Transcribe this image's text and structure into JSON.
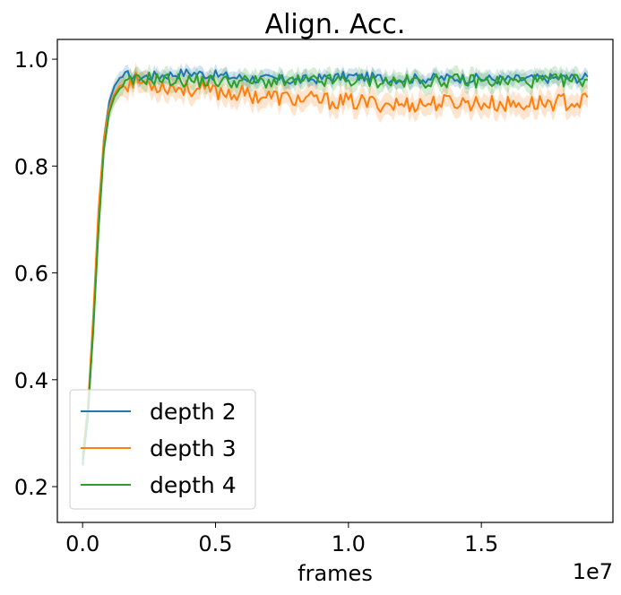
{
  "chart_data": {
    "type": "line",
    "title": "Align. Acc.",
    "xlabel": "frames",
    "ylabel": "",
    "x_offset_label": "1e7",
    "xlim": [
      -0.095,
      1.995
    ],
    "ylim": [
      0.133,
      1.037
    ],
    "x_ticks": [
      0.0,
      0.5,
      1.0,
      1.5
    ],
    "x_tick_labels": [
      "0.0",
      "0.5",
      "1.0",
      "1.5"
    ],
    "y_ticks": [
      0.2,
      0.4,
      0.6,
      0.8,
      1.0
    ],
    "y_tick_labels": [
      "0.2",
      "0.4",
      "0.6",
      "0.8",
      "1.0"
    ],
    "grid": false,
    "legend_position": "lower-left",
    "series": [
      {
        "name": "depth 2",
        "color": "#1f77b4",
        "x": [
          0.0,
          0.02,
          0.04,
          0.06,
          0.08,
          0.1,
          0.12,
          0.14,
          0.17,
          0.2,
          0.25,
          0.3,
          0.4,
          0.6,
          0.8,
          1.0,
          1.2,
          1.4,
          1.6,
          1.8,
          1.9
        ],
        "y": [
          0.24,
          0.33,
          0.5,
          0.7,
          0.85,
          0.92,
          0.95,
          0.965,
          0.97,
          0.965,
          0.968,
          0.97,
          0.975,
          0.965,
          0.96,
          0.968,
          0.963,
          0.965,
          0.962,
          0.965,
          0.965
        ],
        "band": 0.012
      },
      {
        "name": "depth 3",
        "color": "#ff7f0e",
        "x": [
          0.0,
          0.02,
          0.04,
          0.06,
          0.08,
          0.1,
          0.12,
          0.14,
          0.17,
          0.2,
          0.25,
          0.3,
          0.4,
          0.6,
          0.8,
          1.0,
          1.2,
          1.4,
          1.6,
          1.8,
          1.9
        ],
        "y": [
          0.26,
          0.35,
          0.52,
          0.72,
          0.85,
          0.91,
          0.935,
          0.95,
          0.955,
          0.96,
          0.955,
          0.95,
          0.945,
          0.935,
          0.925,
          0.92,
          0.915,
          0.92,
          0.915,
          0.92,
          0.92
        ],
        "band": 0.02
      },
      {
        "name": "depth 4",
        "color": "#2ca02c",
        "x": [
          0.0,
          0.02,
          0.04,
          0.06,
          0.08,
          0.1,
          0.12,
          0.14,
          0.17,
          0.2,
          0.25,
          0.3,
          0.4,
          0.6,
          0.8,
          1.0,
          1.2,
          1.4,
          1.6,
          1.8,
          1.9
        ],
        "y": [
          0.25,
          0.34,
          0.49,
          0.68,
          0.83,
          0.9,
          0.93,
          0.945,
          0.955,
          0.96,
          0.965,
          0.962,
          0.96,
          0.958,
          0.958,
          0.96,
          0.958,
          0.96,
          0.958,
          0.96,
          0.962
        ],
        "band": 0.016
      }
    ]
  }
}
